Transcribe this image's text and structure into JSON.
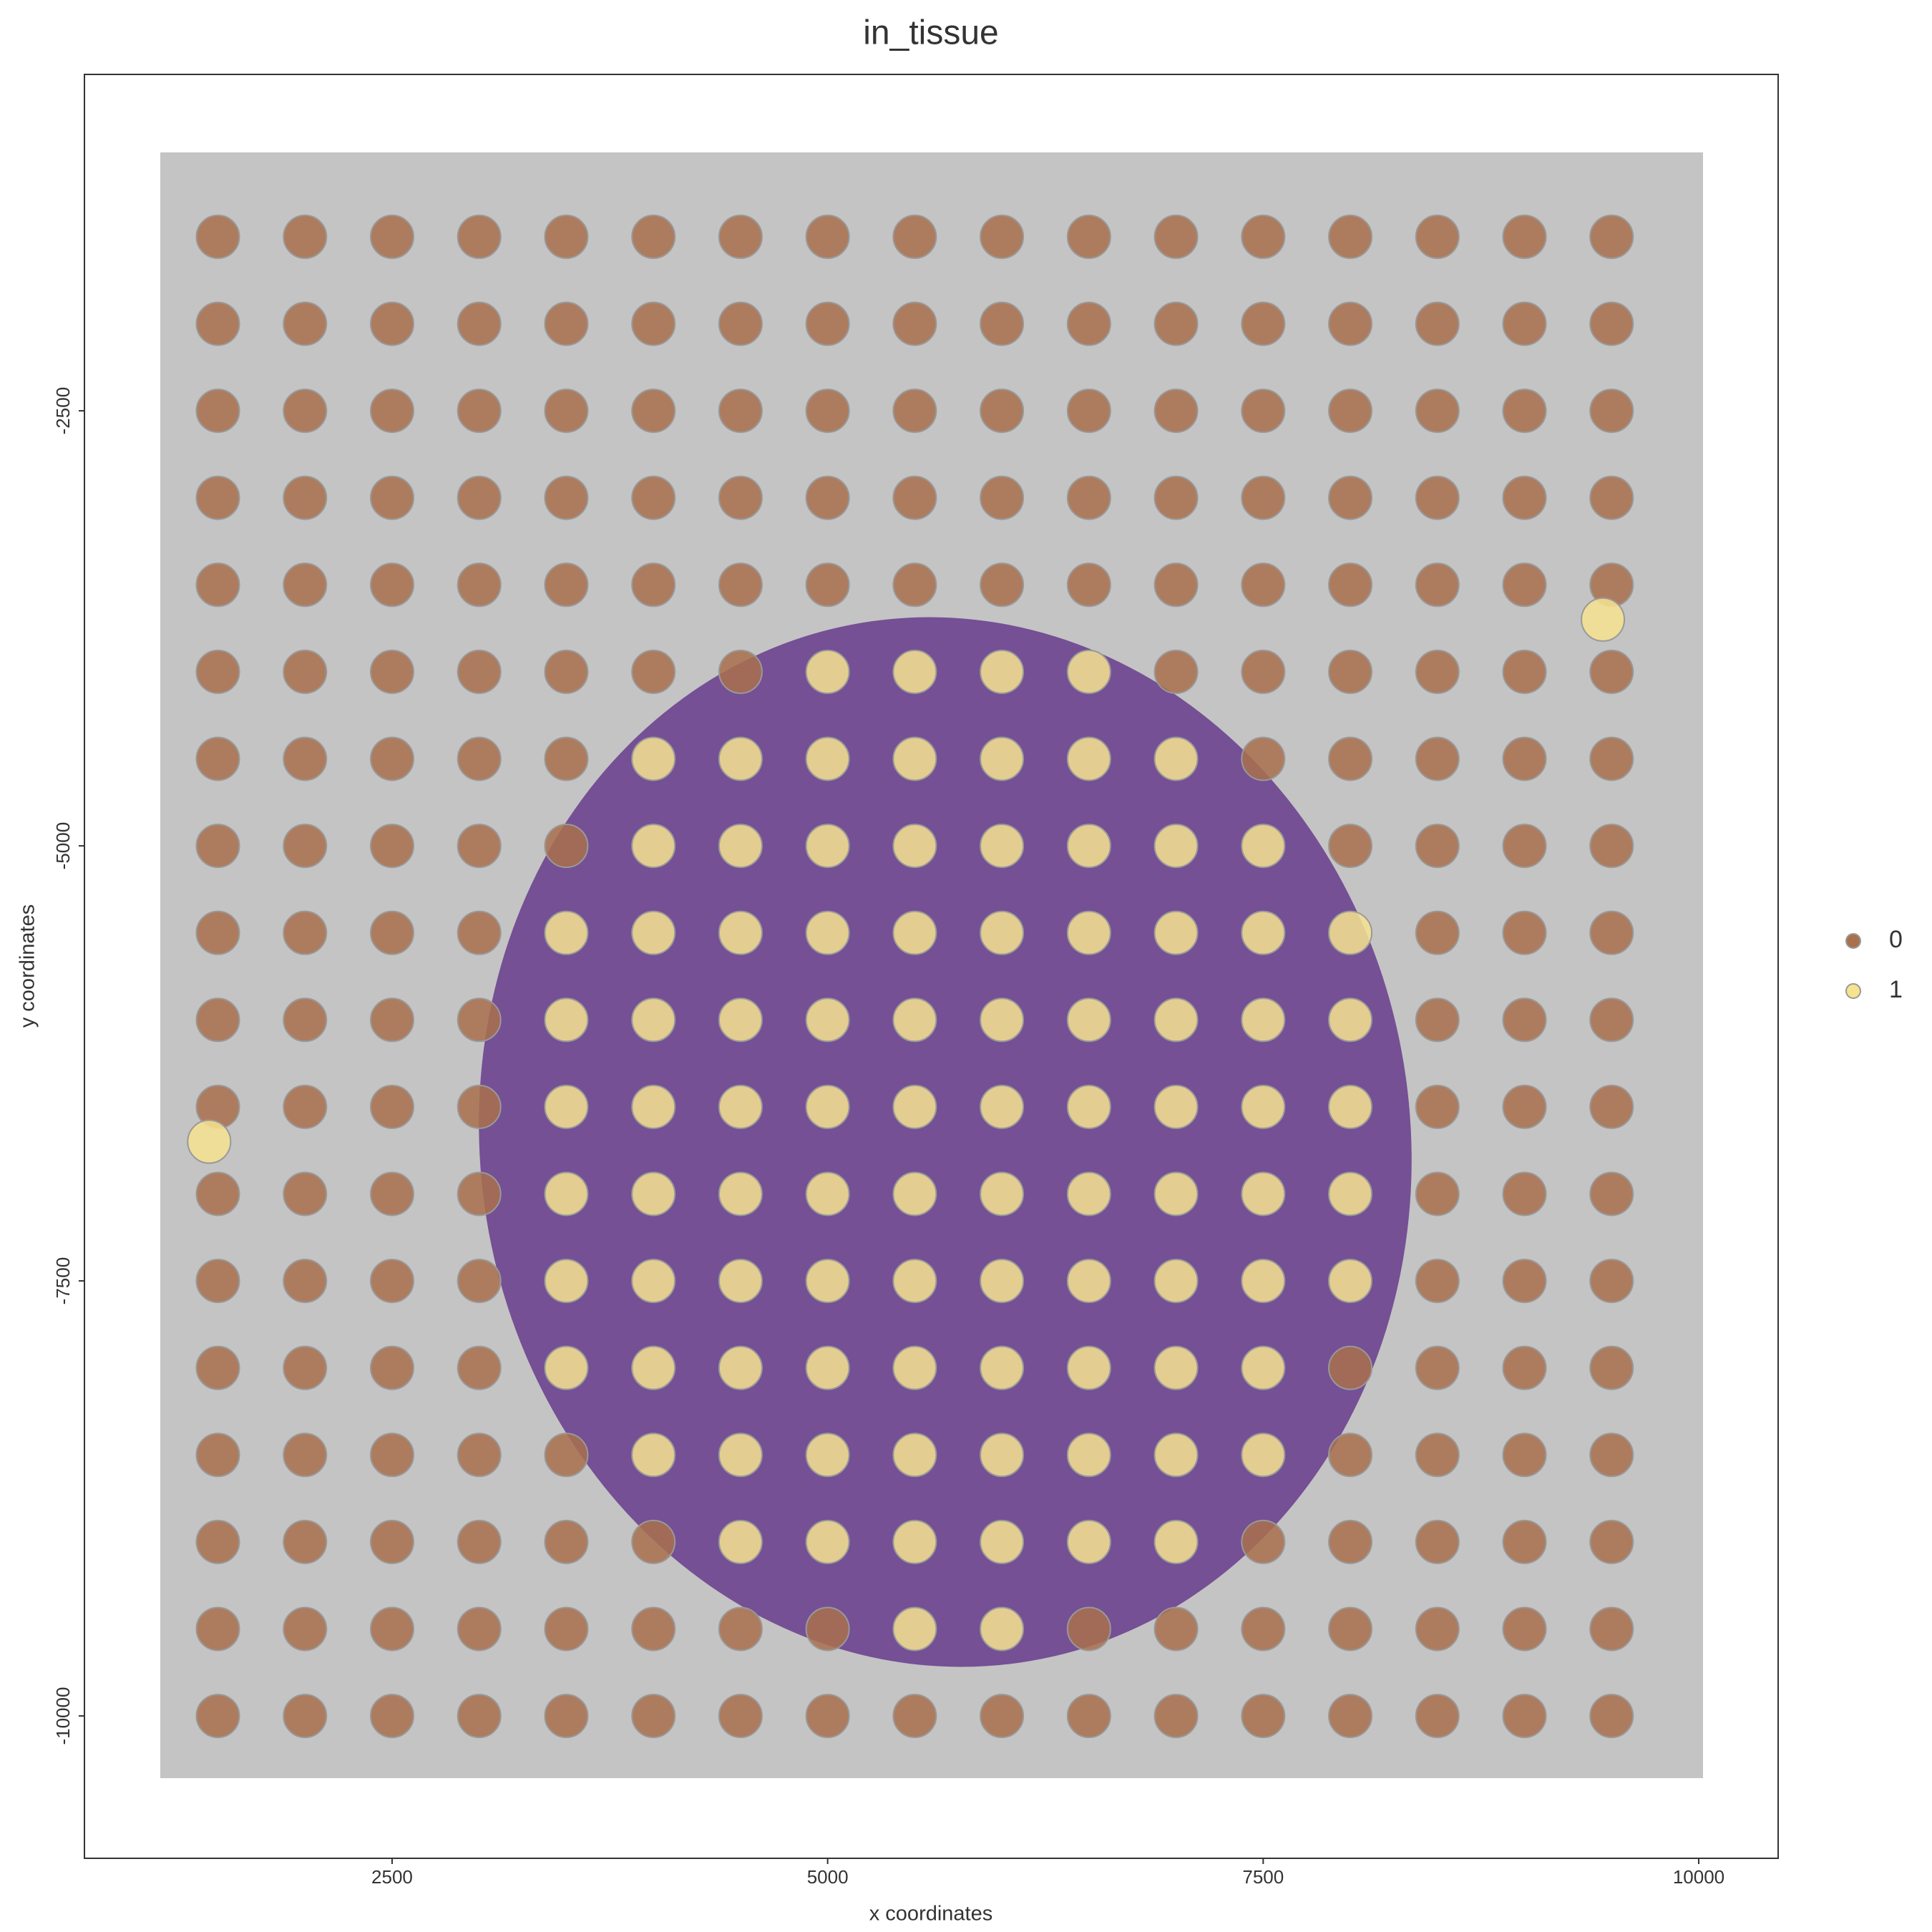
{
  "chart_data": {
    "type": "scatter",
    "title": "in_tissue",
    "x_label": "x coordinates",
    "y_label": "y coordinates",
    "xlim": [
      734,
      10456
    ],
    "ylim": [
      -10818,
      -567
    ],
    "xticks": [
      2500,
      5000,
      7500,
      10000
    ],
    "yticks": [
      -2500,
      -5000,
      -7500,
      -10000
    ],
    "grid": false,
    "legend": "right",
    "series": [
      {
        "name": "0",
        "color": "#a9704e",
        "x": [
          1500,
          2000,
          2500,
          3000,
          3500,
          4000,
          4500,
          5000,
          5500,
          6000,
          6500,
          7000,
          7500,
          8000,
          8500,
          9000,
          9500,
          1500,
          2000,
          2500,
          3000,
          3500,
          4000,
          4500,
          5000,
          5500,
          6000,
          6500,
          7000,
          7500,
          8000,
          8500,
          9000,
          9500,
          1500,
          2000,
          2500,
          3000,
          3500,
          4000,
          4500,
          5000,
          5500,
          6000,
          6500,
          7000,
          7500,
          8000,
          8500,
          9000,
          9500,
          1500,
          2000,
          2500,
          3000,
          3500,
          4000,
          4500,
          5000,
          5500,
          6000,
          6500,
          7000,
          7500,
          8000,
          8500,
          9000,
          9500,
          1500,
          2000,
          2500,
          3000,
          3500,
          4000,
          4500,
          5000,
          5500,
          6000,
          6500,
          7000,
          7500,
          8000,
          8500,
          9000,
          9500,
          1500,
          2000,
          2500,
          3000,
          3500,
          4000,
          4500,
          7000,
          7500,
          8000,
          8500,
          9000,
          9500,
          1500,
          2000,
          2500,
          3000,
          3500,
          7500,
          8000,
          8500,
          9000,
          9500,
          1500,
          2000,
          2500,
          3000,
          3500,
          8000,
          8500,
          9000,
          9500,
          1500,
          2000,
          2500,
          3000,
          8500,
          9000,
          9500,
          1500,
          2000,
          2500,
          3000,
          8500,
          9000,
          9500,
          1500,
          2000,
          2500,
          3000,
          8500,
          9000,
          9500,
          1500,
          2000,
          2500,
          3000,
          8500,
          9000,
          9500,
          1500,
          2000,
          2500,
          3000,
          8500,
          9000,
          9500,
          1500,
          2000,
          2500,
          3000,
          8000,
          8500,
          9000,
          9500,
          1500,
          2000,
          2500,
          3000,
          3500,
          8000,
          8500,
          9000,
          9500,
          1500,
          2000,
          2500,
          3000,
          3500,
          4000,
          7500,
          8000,
          8500,
          9000,
          9500,
          1500,
          2000,
          2500,
          3000,
          3500,
          4000,
          4500,
          5000,
          6500,
          7000,
          7500,
          8000,
          8500,
          9000,
          9500,
          1500,
          2000,
          2500,
          3000,
          3500,
          4000,
          4500,
          5000,
          5500,
          6000,
          6500,
          7000,
          7500,
          8000,
          8500,
          9000,
          9500
        ],
        "y": [
          -1500,
          -1500,
          -1500,
          -1500,
          -1500,
          -1500,
          -1500,
          -1500,
          -1500,
          -1500,
          -1500,
          -1500,
          -1500,
          -1500,
          -1500,
          -1500,
          -1500,
          -2000,
          -2000,
          -2000,
          -2000,
          -2000,
          -2000,
          -2000,
          -2000,
          -2000,
          -2000,
          -2000,
          -2000,
          -2000,
          -2000,
          -2000,
          -2000,
          -2000,
          -2500,
          -2500,
          -2500,
          -2500,
          -2500,
          -2500,
          -2500,
          -2500,
          -2500,
          -2500,
          -2500,
          -2500,
          -2500,
          -2500,
          -2500,
          -2500,
          -2500,
          -3000,
          -3000,
          -3000,
          -3000,
          -3000,
          -3000,
          -3000,
          -3000,
          -3000,
          -3000,
          -3000,
          -3000,
          -3000,
          -3000,
          -3000,
          -3000,
          -3000,
          -3500,
          -3500,
          -3500,
          -3500,
          -3500,
          -3500,
          -3500,
          -3500,
          -3500,
          -3500,
          -3500,
          -3500,
          -3500,
          -3500,
          -3500,
          -3500,
          -3500,
          -4000,
          -4000,
          -4000,
          -4000,
          -4000,
          -4000,
          -4000,
          -4000,
          -4000,
          -4000,
          -4000,
          -4000,
          -4000,
          -4500,
          -4500,
          -4500,
          -4500,
          -4500,
          -4500,
          -4500,
          -4500,
          -4500,
          -4500,
          -5000,
          -5000,
          -5000,
          -5000,
          -5000,
          -5000,
          -5000,
          -5000,
          -5000,
          -5500,
          -5500,
          -5500,
          -5500,
          -5500,
          -5500,
          -5500,
          -6000,
          -6000,
          -6000,
          -6000,
          -6000,
          -6000,
          -6000,
          -6500,
          -6500,
          -6500,
          -6500,
          -6500,
          -6500,
          -6500,
          -7000,
          -7000,
          -7000,
          -7000,
          -7000,
          -7000,
          -7000,
          -7500,
          -7500,
          -7500,
          -7500,
          -7500,
          -7500,
          -7500,
          -8000,
          -8000,
          -8000,
          -8000,
          -8000,
          -8000,
          -8000,
          -8000,
          -8500,
          -8500,
          -8500,
          -8500,
          -8500,
          -8500,
          -8500,
          -8500,
          -8500,
          -9000,
          -9000,
          -9000,
          -9000,
          -9000,
          -9000,
          -9000,
          -9000,
          -9000,
          -9000,
          -9000,
          -9500,
          -9500,
          -9500,
          -9500,
          -9500,
          -9500,
          -9500,
          -9500,
          -9500,
          -9500,
          -9500,
          -9500,
          -9500,
          -9500,
          -9500,
          -10000,
          -10000,
          -10000,
          -10000,
          -10000,
          -10000,
          -10000,
          -10000,
          -10000,
          -10000,
          -10000,
          -10000,
          -10000,
          -10000,
          -10000,
          -10000,
          -10000
        ]
      },
      {
        "name": "1",
        "color": "#f7e38f",
        "x": [
          5000,
          5500,
          6000,
          6500,
          4000,
          4500,
          5000,
          5500,
          6000,
          6500,
          7000,
          4000,
          4500,
          5000,
          5500,
          6000,
          6500,
          7000,
          7500,
          3500,
          4000,
          4500,
          5000,
          5500,
          6000,
          6500,
          7000,
          7500,
          8000,
          3500,
          4000,
          4500,
          5000,
          5500,
          6000,
          6500,
          7000,
          7500,
          8000,
          3500,
          4000,
          4500,
          5000,
          5500,
          6000,
          6500,
          7000,
          7500,
          8000,
          3500,
          4000,
          4500,
          5000,
          5500,
          6000,
          6500,
          7000,
          7500,
          8000,
          3500,
          4000,
          4500,
          5000,
          5500,
          6000,
          6500,
          7000,
          7500,
          8000,
          3500,
          4000,
          4500,
          5000,
          5500,
          6000,
          6500,
          7000,
          7500,
          4000,
          4500,
          5000,
          5500,
          6000,
          6500,
          7000,
          7500,
          4500,
          5000,
          5500,
          6000,
          6500,
          7000,
          5500,
          6000,
          9450,
          1450
        ],
        "y": [
          -4000,
          -4000,
          -4000,
          -4000,
          -4500,
          -4500,
          -4500,
          -4500,
          -4500,
          -4500,
          -4500,
          -5000,
          -5000,
          -5000,
          -5000,
          -5000,
          -5000,
          -5000,
          -5000,
          -5500,
          -5500,
          -5500,
          -5500,
          -5500,
          -5500,
          -5500,
          -5500,
          -5500,
          -5500,
          -6000,
          -6000,
          -6000,
          -6000,
          -6000,
          -6000,
          -6000,
          -6000,
          -6000,
          -6000,
          -6500,
          -6500,
          -6500,
          -6500,
          -6500,
          -6500,
          -6500,
          -6500,
          -6500,
          -6500,
          -7000,
          -7000,
          -7000,
          -7000,
          -7000,
          -7000,
          -7000,
          -7000,
          -7000,
          -7000,
          -7500,
          -7500,
          -7500,
          -7500,
          -7500,
          -7500,
          -7500,
          -7500,
          -7500,
          -7500,
          -8000,
          -8000,
          -8000,
          -8000,
          -8000,
          -8000,
          -8000,
          -8000,
          -8000,
          -8500,
          -8500,
          -8500,
          -8500,
          -8500,
          -8500,
          -8500,
          -8500,
          -9000,
          -9000,
          -9000,
          -9000,
          -9000,
          -9000,
          -9500,
          -9500,
          -3700,
          -6700
        ]
      }
    ]
  }
}
